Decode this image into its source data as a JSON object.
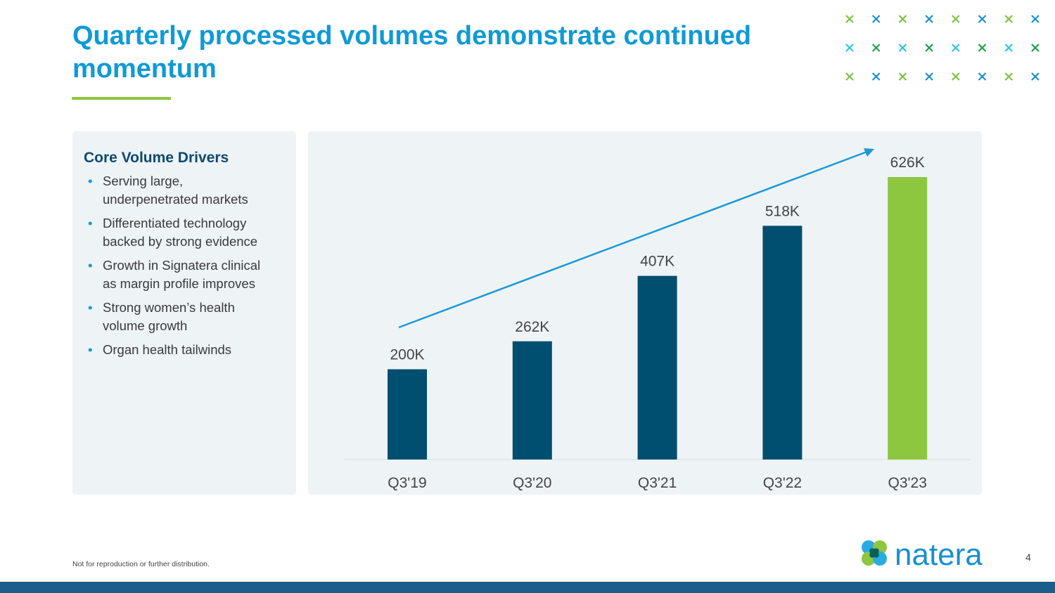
{
  "title": "Quarterly processed volumes demonstrate continued momentum",
  "colors": {
    "accent": "#0f9ad6",
    "bar": "#004e70",
    "highlight": "#8dc63f",
    "arrow": "#1a9ad6"
  },
  "left_panel": {
    "heading": "Core Volume Drivers",
    "bullets": [
      "Serving large, underpenetrated markets",
      "Differentiated technology backed by strong evidence",
      "Growth in Signatera clinical as margin profile improves",
      "Strong women’s health volume growth",
      "Organ health tailwinds"
    ]
  },
  "chart_data": {
    "type": "bar",
    "title": "",
    "xlabel": "",
    "ylabel": "",
    "categories": [
      "Q3'19",
      "Q3'20",
      "Q3'21",
      "Q3'22",
      "Q3'23"
    ],
    "values": [
      200,
      262,
      407,
      518,
      626
    ],
    "labels": [
      "200K",
      "262K",
      "407K",
      "518K",
      "626K"
    ],
    "unit": "K",
    "ylim": [
      0,
      626
    ],
    "grid": false,
    "highlight_index": 4,
    "trend_arrow": true
  },
  "footer": {
    "note": "Not for reproduction or further distribution.",
    "page": "4",
    "logo_text": "natera"
  }
}
